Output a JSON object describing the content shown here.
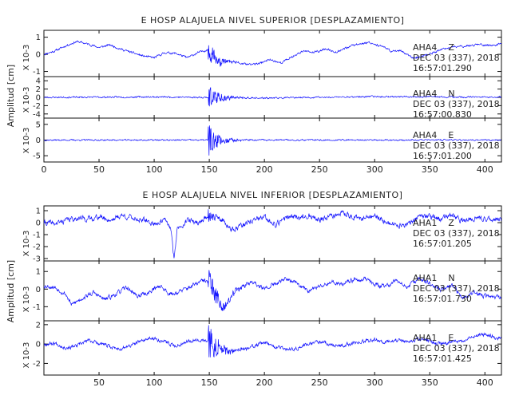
{
  "chart_data": [
    {
      "type": "line",
      "title": "E HOSP ALAJUELA NIVEL SUPERIOR [DESPLAZAMIENTO]",
      "ylabel": "Amplitud [cm]",
      "xlim": [
        0,
        415
      ],
      "x_ticks": [
        0,
        50,
        100,
        150,
        200,
        250,
        300,
        350,
        400
      ],
      "show_x_tick_labels": true,
      "series": [
        {
          "station": "AHA4",
          "component": "Z",
          "date": "DEC 03 (337), 2018",
          "time": "16:57:01.290",
          "scale": "X 10-3",
          "ylim": [
            -1.3,
            1.4
          ],
          "y_ticks": [
            -1,
            0,
            1
          ],
          "noise": 0.05,
          "seed": 11,
          "event_amp": 0.9,
          "event_decay": 8,
          "base": [
            [
              0,
              0
            ],
            [
              10,
              0.2
            ],
            [
              20,
              0.5
            ],
            [
              30,
              0.75
            ],
            [
              40,
              0.6
            ],
            [
              50,
              0.4
            ],
            [
              60,
              0.55
            ],
            [
              70,
              0.3
            ],
            [
              80,
              0.1
            ],
            [
              90,
              -0.1
            ],
            [
              100,
              -0.2
            ],
            [
              110,
              0.1
            ],
            [
              120,
              0.05
            ],
            [
              130,
              -0.2
            ],
            [
              140,
              0.1
            ],
            [
              150,
              0.3
            ],
            [
              158,
              -0.5
            ],
            [
              165,
              -0.4
            ],
            [
              175,
              -0.5
            ],
            [
              185,
              -0.6
            ],
            [
              195,
              -0.55
            ],
            [
              205,
              -0.3
            ],
            [
              215,
              -0.5
            ],
            [
              225,
              -0.15
            ],
            [
              235,
              0.2
            ],
            [
              245,
              0.1
            ],
            [
              255,
              0.3
            ],
            [
              265,
              0.15
            ],
            [
              275,
              0.4
            ],
            [
              285,
              0.6
            ],
            [
              295,
              0.7
            ],
            [
              305,
              0.5
            ],
            [
              315,
              0.2
            ],
            [
              325,
              0.2
            ],
            [
              335,
              -0.25
            ],
            [
              345,
              -0.1
            ],
            [
              355,
              0.15
            ],
            [
              365,
              0.35
            ],
            [
              375,
              0.45
            ],
            [
              385,
              0.5
            ],
            [
              395,
              0.6
            ],
            [
              405,
              0.5
            ],
            [
              415,
              0.6
            ]
          ]
        },
        {
          "station": "AHA4",
          "component": "N",
          "date": "DEC 03 (337), 2018",
          "time": "16:57:00.830",
          "scale": "X 10-3",
          "ylim": [
            -5,
            5
          ],
          "y_ticks": [
            -4,
            -2,
            0,
            2,
            4
          ],
          "noise": 0.15,
          "seed": 23,
          "event_amp": 3.2,
          "event_decay": 10,
          "base": [
            [
              0,
              0
            ],
            [
              100,
              0.1
            ],
            [
              145,
              0
            ],
            [
              200,
              -0.2
            ],
            [
              300,
              0.2
            ],
            [
              415,
              0
            ]
          ]
        },
        {
          "station": "AHA4",
          "component": "E",
          "date": "DEC 03 (337), 2018",
          "time": "16:57:01.200",
          "scale": "X 10-3",
          "ylim": [
            -7,
            7
          ],
          "y_ticks": [
            -5,
            0,
            5
          ],
          "noise": 0.18,
          "seed": 37,
          "event_amp": 5.5,
          "event_decay": 9,
          "base": [
            [
              0,
              0
            ],
            [
              150,
              0
            ],
            [
              415,
              0
            ]
          ]
        }
      ]
    },
    {
      "type": "line",
      "title": "E HOSP ALAJUELA NIVEL INFERIOR [DESPLAZAMIENTO]",
      "ylabel": "Amplitud [cm]",
      "xlim": [
        0,
        415
      ],
      "x_ticks": [
        50,
        100,
        150,
        200,
        250,
        300,
        350,
        400
      ],
      "show_x_tick_labels": true,
      "series": [
        {
          "station": "AHA1",
          "component": "Z",
          "date": "DEC 03 (337), 2018",
          "time": "16:57:01.205",
          "scale": "X 10-3",
          "ylim": [
            -3.2,
            1.4
          ],
          "y_ticks": [
            -3,
            -2,
            -1,
            0,
            1
          ],
          "noise": 0.18,
          "seed": 41,
          "event_amp": 0.6,
          "event_decay": 6,
          "base": [
            [
              0,
              0
            ],
            [
              10,
              -0.1
            ],
            [
              20,
              0.2
            ],
            [
              30,
              0.4
            ],
            [
              40,
              0.3
            ],
            [
              50,
              0.5
            ],
            [
              60,
              0.2
            ],
            [
              70,
              0.6
            ],
            [
              80,
              0.4
            ],
            [
              90,
              0.2
            ],
            [
              100,
              -0.1
            ],
            [
              110,
              0.2
            ],
            [
              115,
              -0.5
            ],
            [
              118,
              -3
            ],
            [
              121,
              -0.5
            ],
            [
              130,
              0.2
            ],
            [
              140,
              0
            ],
            [
              150,
              0.6
            ],
            [
              160,
              0.3
            ],
            [
              170,
              -0.6
            ],
            [
              180,
              -0.3
            ],
            [
              190,
              0.2
            ],
            [
              200,
              0.4
            ],
            [
              210,
              -0.2
            ],
            [
              220,
              0.5
            ],
            [
              230,
              0.4
            ],
            [
              240,
              0.6
            ],
            [
              250,
              0.2
            ],
            [
              260,
              0.5
            ],
            [
              270,
              0.8
            ],
            [
              280,
              0.5
            ],
            [
              290,
              0.3
            ],
            [
              300,
              0.6
            ],
            [
              310,
              0.1
            ],
            [
              320,
              -0.3
            ],
            [
              330,
              -0.1
            ],
            [
              340,
              0.4
            ],
            [
              350,
              0.5
            ],
            [
              360,
              0.3
            ],
            [
              370,
              0.6
            ],
            [
              380,
              0.1
            ],
            [
              390,
              0.4
            ],
            [
              400,
              0.3
            ],
            [
              415,
              0.2
            ]
          ]
        },
        {
          "station": "AHA1",
          "component": "N",
          "date": "DEC 03 (337), 2018",
          "time": "16:57:01.730",
          "scale": "X 10-3",
          "ylim": [
            -1.8,
            1.6
          ],
          "y_ticks": [
            -1,
            0,
            1
          ],
          "noise": 0.1,
          "seed": 53,
          "event_amp": 0.9,
          "event_decay": 12,
          "base": [
            [
              0,
              0.2
            ],
            [
              10,
              0.1
            ],
            [
              20,
              -0.3
            ],
            [
              25,
              -0.9
            ],
            [
              35,
              -0.5
            ],
            [
              45,
              -0.2
            ],
            [
              55,
              -0.6
            ],
            [
              65,
              -0.3
            ],
            [
              75,
              0.1
            ],
            [
              85,
              -0.4
            ],
            [
              95,
              -0.2
            ],
            [
              105,
              0.2
            ],
            [
              115,
              -0.3
            ],
            [
              125,
              -0.1
            ],
            [
              135,
              0.2
            ],
            [
              145,
              0.5
            ],
            [
              152,
              0.3
            ],
            [
              158,
              -0.6
            ],
            [
              163,
              -1.1
            ],
            [
              170,
              -0.3
            ],
            [
              180,
              0.2
            ],
            [
              190,
              0.4
            ],
            [
              200,
              0
            ],
            [
              210,
              0.3
            ],
            [
              220,
              0.6
            ],
            [
              230,
              0.3
            ],
            [
              240,
              -0.1
            ],
            [
              250,
              0.2
            ],
            [
              260,
              0.4
            ],
            [
              270,
              0.3
            ],
            [
              280,
              0.5
            ],
            [
              290,
              0.6
            ],
            [
              300,
              0.3
            ],
            [
              310,
              0.1
            ],
            [
              320,
              0.5
            ],
            [
              330,
              0.1
            ],
            [
              340,
              0.6
            ],
            [
              350,
              0.3
            ],
            [
              360,
              0
            ],
            [
              370,
              0.2
            ],
            [
              380,
              -0.5
            ],
            [
              390,
              -0.2
            ],
            [
              400,
              -0.4
            ],
            [
              415,
              -0.5
            ]
          ]
        },
        {
          "station": "AHA1",
          "component": "E",
          "date": "DEC 03 (337), 2018",
          "time": "16:57:01.425",
          "scale": "X 10-3",
          "ylim": [
            -3.2,
            2.4
          ],
          "y_ticks": [
            -2,
            0,
            2
          ],
          "noise": 0.15,
          "seed": 67,
          "event_amp": 2.2,
          "event_decay": 9,
          "base": [
            [
              0,
              0
            ],
            [
              10,
              0.1
            ],
            [
              20,
              -0.4
            ],
            [
              30,
              -0.2
            ],
            [
              40,
              0.4
            ],
            [
              50,
              0.1
            ],
            [
              60,
              -0.3
            ],
            [
              70,
              -0.5
            ],
            [
              80,
              -0.1
            ],
            [
              90,
              0.4
            ],
            [
              100,
              0.6
            ],
            [
              110,
              0.2
            ],
            [
              120,
              -0.2
            ],
            [
              130,
              0.3
            ],
            [
              140,
              0.5
            ],
            [
              150,
              0.2
            ],
            [
              160,
              -0.4
            ],
            [
              170,
              -0.8
            ],
            [
              180,
              -0.5
            ],
            [
              190,
              -0.2
            ],
            [
              200,
              0.1
            ],
            [
              210,
              -0.3
            ],
            [
              220,
              -0.6
            ],
            [
              230,
              -0.4
            ],
            [
              240,
              0
            ],
            [
              250,
              0.3
            ],
            [
              260,
              0
            ],
            [
              270,
              -0.2
            ],
            [
              280,
              0.1
            ],
            [
              290,
              0.3
            ],
            [
              300,
              0.5
            ],
            [
              310,
              0.2
            ],
            [
              320,
              0.4
            ],
            [
              330,
              0.2
            ],
            [
              340,
              0.5
            ],
            [
              350,
              0.3
            ],
            [
              360,
              0
            ],
            [
              370,
              0.2
            ],
            [
              380,
              0.4
            ],
            [
              390,
              0.8
            ],
            [
              400,
              1
            ],
            [
              415,
              0.5
            ]
          ]
        }
      ]
    }
  ],
  "colors": {
    "trace": "#1010ff",
    "axis": "#111111"
  }
}
